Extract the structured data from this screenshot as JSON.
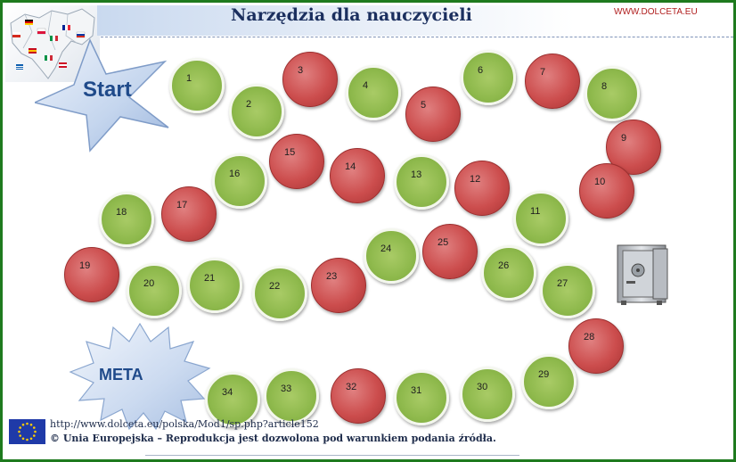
{
  "header": {
    "title": "Narzędzia dla nauczycieli",
    "site": "WWW.DOLCETA.EU"
  },
  "board": {
    "start_label": "Start",
    "finish_label": "META",
    "fields": [
      {
        "number": "1",
        "color": "green"
      },
      {
        "number": "2",
        "color": "green"
      },
      {
        "number": "3",
        "color": "red"
      },
      {
        "number": "4",
        "color": "green"
      },
      {
        "number": "5",
        "color": "red"
      },
      {
        "number": "6",
        "color": "green"
      },
      {
        "number": "7",
        "color": "red"
      },
      {
        "number": "8",
        "color": "green"
      },
      {
        "number": "9",
        "color": "red"
      },
      {
        "number": "10",
        "color": "red"
      },
      {
        "number": "11",
        "color": "green"
      },
      {
        "number": "12",
        "color": "red"
      },
      {
        "number": "13",
        "color": "green"
      },
      {
        "number": "14",
        "color": "red"
      },
      {
        "number": "15",
        "color": "red"
      },
      {
        "number": "16",
        "color": "green"
      },
      {
        "number": "17",
        "color": "red"
      },
      {
        "number": "18",
        "color": "green"
      },
      {
        "number": "19",
        "color": "red"
      },
      {
        "number": "20",
        "color": "green"
      },
      {
        "number": "21",
        "color": "green"
      },
      {
        "number": "22",
        "color": "green"
      },
      {
        "number": "23",
        "color": "red"
      },
      {
        "number": "24",
        "color": "green"
      },
      {
        "number": "25",
        "color": "red"
      },
      {
        "number": "26",
        "color": "green"
      },
      {
        "number": "27",
        "color": "green"
      },
      {
        "number": "28",
        "color": "red"
      },
      {
        "number": "29",
        "color": "green"
      },
      {
        "number": "30",
        "color": "green"
      },
      {
        "number": "31",
        "color": "green"
      },
      {
        "number": "32",
        "color": "red"
      },
      {
        "number": "33",
        "color": "green"
      },
      {
        "number": "34",
        "color": "green"
      }
    ]
  },
  "footer": {
    "url_line": "http://www.dolceta.eu/polska/Mod1/sp.php?article152",
    "copyright_line": "© Unia Europejska – Reprodukcja jest dozwolona pod warunkiem podania źródła."
  },
  "colors": {
    "frame": "#1e7a1e",
    "green_field": "#8eb94c",
    "red_field": "#cc4d4d",
    "title": "#1b2f5e"
  }
}
